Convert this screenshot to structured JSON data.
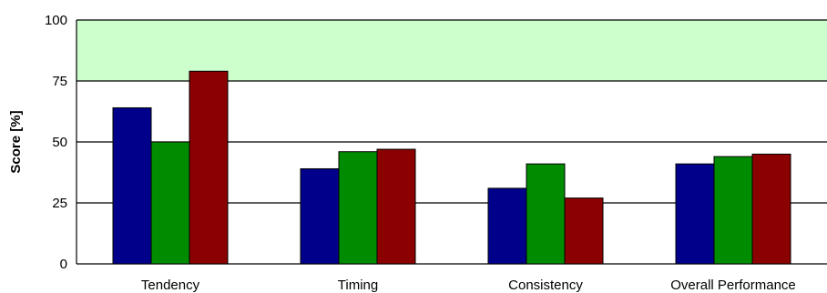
{
  "chart_data": {
    "type": "bar",
    "categories": [
      "Tendency",
      "Timing",
      "Consistency",
      "Overall Performance"
    ],
    "series": [
      {
        "color": "#00008b",
        "values": [
          64,
          39,
          31,
          41
        ]
      },
      {
        "color": "#008c00",
        "values": [
          50,
          46,
          41,
          44
        ]
      },
      {
        "color": "#8b0000",
        "values": [
          79,
          47,
          27,
          45
        ]
      }
    ],
    "ylabel": "Score [%]",
    "ylim": [
      0,
      100
    ],
    "yticks": [
      "0",
      "25",
      "50",
      "75",
      "100"
    ],
    "grid": true,
    "highlight_band": {
      "from": 75,
      "to": 100,
      "color": "#ccffcc"
    },
    "legend": "none"
  }
}
